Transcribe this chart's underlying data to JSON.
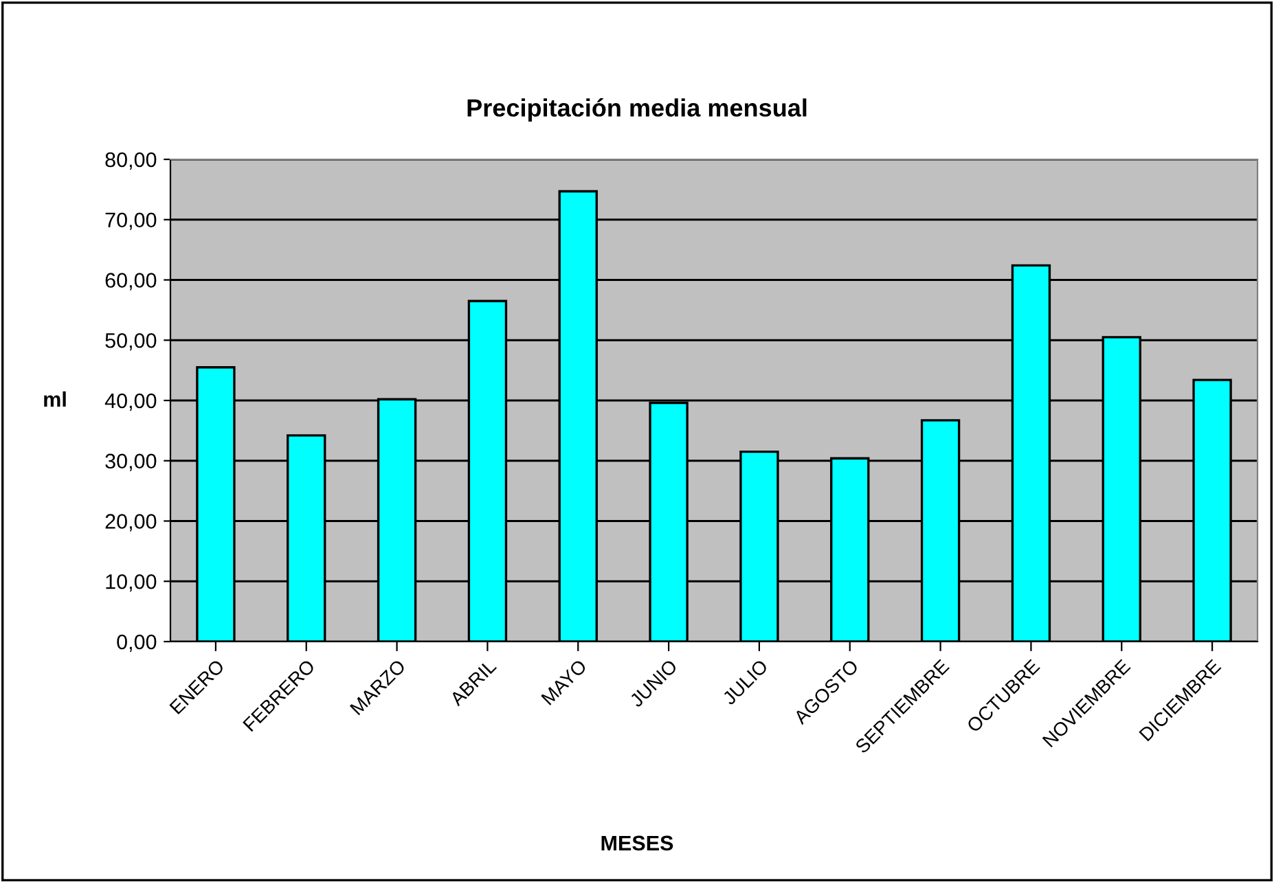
{
  "chart_data": {
    "type": "bar",
    "title": "Precipitación media mensual",
    "xlabel": "MESES",
    "ylabel": "ml",
    "categories": [
      "ENERO",
      "FEBRERO",
      "MARZO",
      "ABRIL",
      "MAYO",
      "JUNIO",
      "JULIO",
      "AGOSTO",
      "SEPTIEMBRE",
      "OCTUBRE",
      "NOVIEMBRE",
      "DICIEMBRE"
    ],
    "values": [
      45.5,
      34.2,
      40.2,
      56.5,
      74.7,
      39.6,
      31.5,
      30.4,
      36.7,
      62.4,
      50.5,
      43.4
    ],
    "color": "#00ffff",
    "ylim": [
      0,
      80
    ],
    "yticks": [
      {
        "value": 0,
        "label": "0,00"
      },
      {
        "value": 10,
        "label": "10,00"
      },
      {
        "value": 20,
        "label": "20,00"
      },
      {
        "value": 30,
        "label": "30,00"
      },
      {
        "value": 40,
        "label": "40,00"
      },
      {
        "value": 50,
        "label": "50,00"
      },
      {
        "value": 60,
        "label": "60,00"
      },
      {
        "value": 70,
        "label": "70,00"
      },
      {
        "value": 80,
        "label": "80,00"
      }
    ],
    "grid": "y",
    "legend": false
  }
}
